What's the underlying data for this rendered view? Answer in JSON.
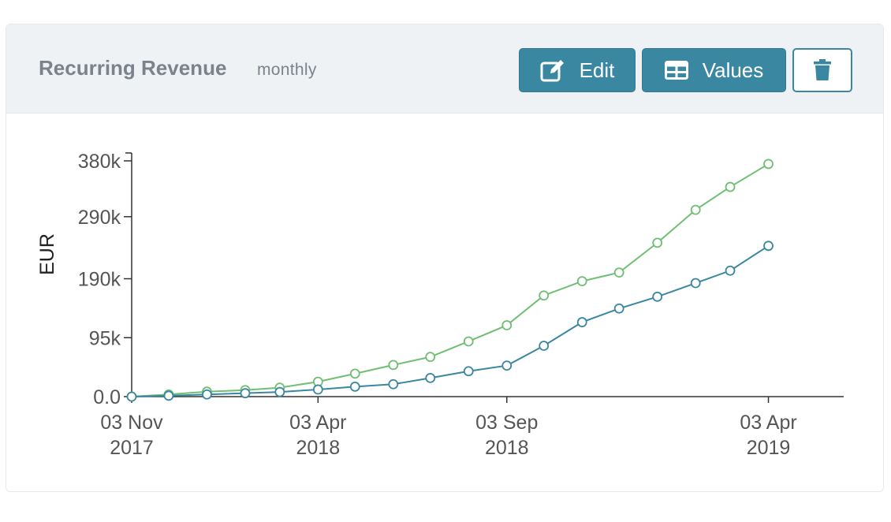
{
  "header": {
    "title": "Recurring Revenue",
    "subtitle": "monthly"
  },
  "toolbar": {
    "edit_label": "Edit",
    "values_label": "Values",
    "edit_icon": "edit-icon",
    "values_icon": "table-icon",
    "delete_icon": "trash-icon"
  },
  "colors": {
    "accent": "#3a87a1",
    "series_green": "#6fbf73",
    "series_blue": "#3a87a1"
  },
  "chart_data": {
    "type": "line",
    "ylabel": "EUR",
    "xlabel": "",
    "ylim": [
      0,
      380000
    ],
    "yticks": [
      {
        "value": 0,
        "label": "0.0"
      },
      {
        "value": 95000,
        "label": "95k"
      },
      {
        "value": 190000,
        "label": "190k"
      },
      {
        "value": 290000,
        "label": "290k"
      },
      {
        "value": 380000,
        "label": "380k"
      }
    ],
    "xlim": [
      "2017-11-03",
      "2019-06-03"
    ],
    "xticks": [
      {
        "value": "2017-11-03",
        "line1": "03 Nov",
        "line2": "2017"
      },
      {
        "value": "2018-04-03",
        "line1": "03 Apr",
        "line2": "2018"
      },
      {
        "value": "2018-09-03",
        "line1": "03 Sep",
        "line2": "2018"
      },
      {
        "value": "2019-04-03",
        "line1": "03 Apr",
        "line2": "2019"
      }
    ],
    "x": [
      "2017-11-03",
      "2017-12-03",
      "2018-01-03",
      "2018-02-03",
      "2018-03-03",
      "2018-04-03",
      "2018-05-03",
      "2018-06-03",
      "2018-07-03",
      "2018-08-03",
      "2018-09-03",
      "2018-10-03",
      "2018-11-03",
      "2018-12-03",
      "2019-01-03",
      "2019-02-03",
      "2019-03-03",
      "2019-04-03",
      "2019-05-03",
      "2019-06-03"
    ],
    "series": [
      {
        "color": "#6fbf73",
        "values": [
          0,
          3500,
          8000,
          10500,
          14500,
          24000,
          37000,
          51000,
          64000,
          89000,
          115000,
          163000,
          186000,
          200000,
          248000,
          301000,
          338000,
          375000,
          null,
          null
        ]
      },
      {
        "color": "#3a87a1",
        "values": [
          0,
          1500,
          3500,
          5500,
          7500,
          11500,
          16000,
          20000,
          30000,
          41000,
          50000,
          82000,
          120000,
          142000,
          161000,
          183000,
          203000,
          243000,
          null,
          null
        ]
      }
    ]
  }
}
